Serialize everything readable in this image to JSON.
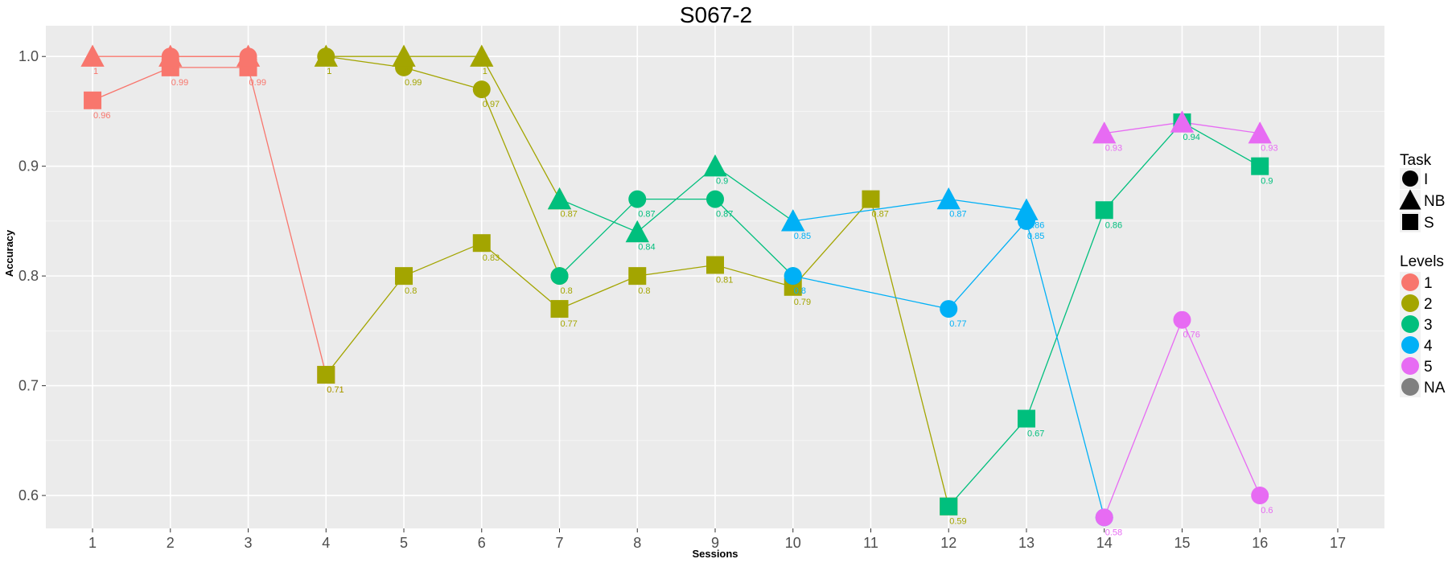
{
  "chart_data": {
    "type": "scatter",
    "title": "S067-2",
    "xlabel": "Sessions",
    "ylabel": "Accuracy",
    "xlim": [
      0.4,
      17.6
    ],
    "ylim": [
      0.57,
      1.028
    ],
    "x_ticks": [
      1,
      2,
      3,
      4,
      5,
      6,
      7,
      8,
      9,
      10,
      11,
      12,
      13,
      14,
      15,
      16,
      17
    ],
    "y_ticks": [
      0.6,
      0.7,
      0.8,
      0.9,
      1.0
    ],
    "y_tick_labels": [
      "0.6",
      "0.7",
      "0.8",
      "0.9",
      "1.0"
    ],
    "grid": true,
    "legend_position": "right",
    "legend": {
      "task_title": "Task",
      "task_entries": [
        {
          "label": "I",
          "shape": "circle"
        },
        {
          "label": "NB",
          "shape": "triangle"
        },
        {
          "label": "S",
          "shape": "square"
        }
      ],
      "levels_title": "Levels",
      "levels_entries": [
        {
          "label": "1",
          "color": "#F8766D"
        },
        {
          "label": "2",
          "color": "#A3A500"
        },
        {
          "label": "3",
          "color": "#00BF7D"
        },
        {
          "label": "4",
          "color": "#00B0F6"
        },
        {
          "label": "5",
          "color": "#E76BF3"
        },
        {
          "label": "NA",
          "color": "#7F7F7F"
        }
      ]
    },
    "series": [
      {
        "task": "NB",
        "level": "1",
        "points": [
          {
            "x": 1,
            "y": 1,
            "label": "1"
          },
          {
            "x": 2,
            "y": 1,
            "label": "1"
          },
          {
            "x": 3,
            "y": 1,
            "label": "1"
          }
        ]
      },
      {
        "task": "I",
        "level": "1",
        "points": [
          {
            "x": 2,
            "y": 1,
            "label": ""
          },
          {
            "x": 3,
            "y": 1,
            "label": ""
          }
        ]
      },
      {
        "task": "S",
        "level": "1",
        "points": [
          {
            "x": 1,
            "y": 0.96,
            "label": "0.96"
          },
          {
            "x": 2,
            "y": 0.99,
            "label": "0.99"
          },
          {
            "x": 3,
            "y": 0.99,
            "label": "0.99"
          },
          {
            "x": 4,
            "y": 0.71,
            "label": "0.71"
          }
        ]
      },
      {
        "task": "NB",
        "level": "2",
        "points": [
          {
            "x": 4,
            "y": 1,
            "label": "1"
          },
          {
            "x": 5,
            "y": 1,
            "label": "1"
          },
          {
            "x": 6,
            "y": 1,
            "label": "1"
          },
          {
            "x": 7,
            "y": 0.87,
            "label": "0.87"
          }
        ]
      },
      {
        "task": "I",
        "level": "2",
        "points": [
          {
            "x": 4,
            "y": 1,
            "label": "1"
          },
          {
            "x": 5,
            "y": 0.99,
            "label": "0.99"
          },
          {
            "x": 6,
            "y": 0.97,
            "label": "0.97"
          },
          {
            "x": 7,
            "y": 0.8,
            "label": "0.8"
          }
        ]
      },
      {
        "task": "S",
        "level": "2",
        "points": [
          {
            "x": 4,
            "y": 0.71,
            "label": "0.71"
          },
          {
            "x": 5,
            "y": 0.8,
            "label": "0.8"
          },
          {
            "x": 6,
            "y": 0.83,
            "label": "0.83"
          },
          {
            "x": 7,
            "y": 0.77,
            "label": "0.77"
          },
          {
            "x": 8,
            "y": 0.8,
            "label": "0.8"
          },
          {
            "x": 9,
            "y": 0.81,
            "label": "0.81"
          },
          {
            "x": 10,
            "y": 0.79,
            "label": "0.79"
          },
          {
            "x": 11,
            "y": 0.87,
            "label": "0.87"
          },
          {
            "x": 12,
            "y": 0.59,
            "label": "0.59"
          }
        ]
      },
      {
        "task": "NB",
        "level": "3",
        "points": [
          {
            "x": 7,
            "y": 0.87,
            "label": ""
          },
          {
            "x": 8,
            "y": 0.84,
            "label": "0.84"
          },
          {
            "x": 9,
            "y": 0.9,
            "label": "0.9"
          },
          {
            "x": 10,
            "y": 0.85,
            "label": ""
          }
        ]
      },
      {
        "task": "I",
        "level": "3",
        "points": [
          {
            "x": 7,
            "y": 0.8,
            "label": ""
          },
          {
            "x": 8,
            "y": 0.87,
            "label": "0.87"
          },
          {
            "x": 9,
            "y": 0.87,
            "label": "0.87"
          },
          {
            "x": 10,
            "y": 0.8,
            "label": ""
          }
        ]
      },
      {
        "task": "S",
        "level": "3",
        "points": [
          {
            "x": 12,
            "y": 0.59,
            "label": ""
          },
          {
            "x": 13,
            "y": 0.67,
            "label": "0.67"
          },
          {
            "x": 14,
            "y": 0.86,
            "label": "0.86"
          },
          {
            "x": 15,
            "y": 0.94,
            "label": "0.94"
          },
          {
            "x": 16,
            "y": 0.9,
            "label": "0.9"
          }
        ]
      },
      {
        "task": "NB",
        "level": "4",
        "points": [
          {
            "x": 10,
            "y": 0.85,
            "label": "0.85"
          },
          {
            "x": 12,
            "y": 0.87,
            "label": "0.87"
          },
          {
            "x": 13,
            "y": 0.86,
            "label": "0.86"
          }
        ]
      },
      {
        "task": "I",
        "level": "4",
        "points": [
          {
            "x": 10,
            "y": 0.8,
            "label": "0.8"
          },
          {
            "x": 12,
            "y": 0.77,
            "label": "0.77"
          },
          {
            "x": 13,
            "y": 0.85,
            "label": "0.85"
          },
          {
            "x": 14,
            "y": 0.58,
            "label": ""
          }
        ]
      },
      {
        "task": "NB",
        "level": "5",
        "points": [
          {
            "x": 14,
            "y": 0.93,
            "label": "0.93"
          },
          {
            "x": 15,
            "y": 0.94,
            "label": ""
          },
          {
            "x": 16,
            "y": 0.93,
            "label": "0.93"
          }
        ]
      },
      {
        "task": "I",
        "level": "5",
        "points": [
          {
            "x": 14,
            "y": 0.58,
            "label": "0.58"
          },
          {
            "x": 15,
            "y": 0.76,
            "label": "0.76"
          },
          {
            "x": 16,
            "y": 0.6,
            "label": "0.6"
          }
        ]
      }
    ]
  }
}
